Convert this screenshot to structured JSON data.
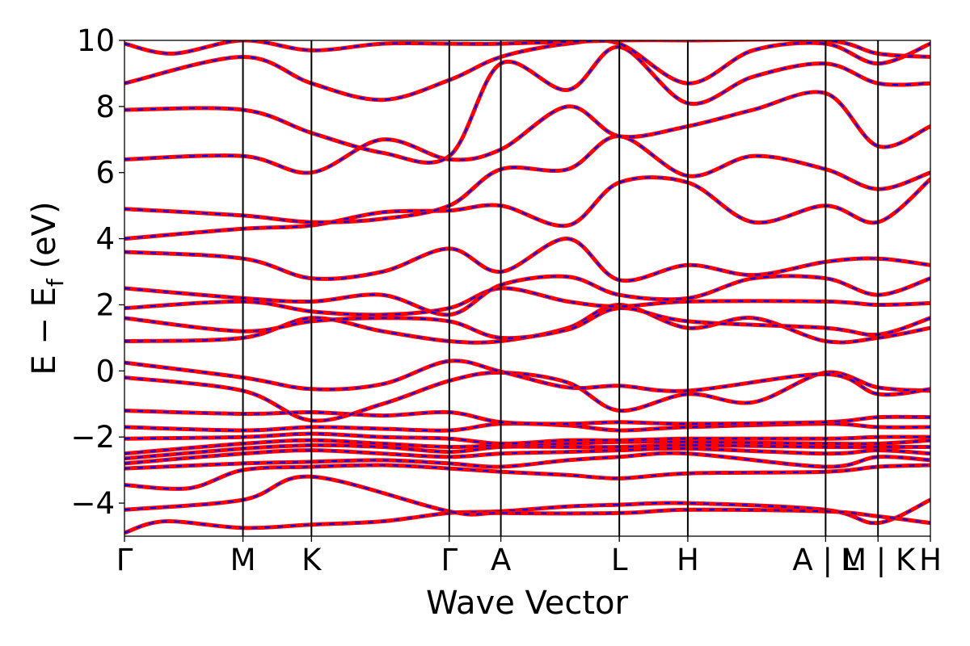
{
  "chart_data": {
    "type": "line",
    "xlabel": "Wave Vector",
    "ylabel_main": "E − E",
    "ylabel_sub": "f",
    "ylabel_unit": " (eV)",
    "ylim": [
      -5,
      10
    ],
    "yticks": [
      -4,
      -2,
      0,
      2,
      4,
      6,
      8,
      10
    ],
    "ytick_labels": [
      "−4",
      "−2",
      "0",
      "2",
      "4",
      "6",
      "8",
      "10"
    ],
    "xlim": [
      0,
      1
    ],
    "kpoints": [
      {
        "label": "Γ",
        "x": 0.0
      },
      {
        "label": "M",
        "x": 0.147
      },
      {
        "label": "K",
        "x": 0.232
      },
      {
        "label": "Γ",
        "x": 0.403
      },
      {
        "label": "A",
        "x": 0.467
      },
      {
        "label": "L",
        "x": 0.614
      },
      {
        "label": "H",
        "x": 0.699
      },
      {
        "label": "A | L",
        "x": 0.87
      },
      {
        "label": "M | K",
        "x": 0.935
      },
      {
        "label": "H",
        "x": 1.0
      }
    ],
    "series_colors": {
      "solid": "#ff0000",
      "dashed": "#0000ff"
    },
    "grid": false,
    "bands": [
      [
        [
          0,
          -4.9
        ],
        [
          0.05,
          -4.55
        ],
        [
          0.147,
          -4.75
        ],
        [
          0.232,
          -4.65
        ],
        [
          0.32,
          -4.55
        ],
        [
          0.403,
          -4.3
        ],
        [
          0.467,
          -4.25
        ],
        [
          0.55,
          -4.1
        ],
        [
          0.614,
          -4.05
        ],
        [
          0.699,
          -4.0
        ],
        [
          0.87,
          -4.2
        ],
        [
          0.935,
          -4.6
        ],
        [
          1,
          -3.9
        ]
      ],
      [
        [
          0,
          -4.2
        ],
        [
          0.147,
          -3.9
        ],
        [
          0.232,
          -3.2
        ],
        [
          0.403,
          -4.25
        ],
        [
          0.467,
          -4.3
        ],
        [
          0.614,
          -4.3
        ],
        [
          0.699,
          -4.2
        ],
        [
          0.87,
          -4.25
        ],
        [
          0.935,
          -4.4
        ],
        [
          1,
          -4.6
        ]
      ],
      [
        [
          0,
          -3.45
        ],
        [
          0.08,
          -3.55
        ],
        [
          0.147,
          -3.0
        ],
        [
          0.232,
          -2.9
        ],
        [
          0.32,
          -2.85
        ],
        [
          0.403,
          -2.95
        ],
        [
          0.467,
          -3.05
        ],
        [
          0.55,
          -3.15
        ],
        [
          0.614,
          -3.25
        ],
        [
          0.699,
          -3.1
        ],
        [
          0.87,
          -3.05
        ],
        [
          0.935,
          -2.9
        ],
        [
          1,
          -2.85
        ]
      ],
      [
        [
          0,
          -2.95
        ],
        [
          0.147,
          -2.8
        ],
        [
          0.232,
          -2.75
        ],
        [
          0.32,
          -2.7
        ],
        [
          0.403,
          -2.8
        ],
        [
          0.467,
          -2.9
        ],
        [
          0.55,
          -2.7
        ],
        [
          0.614,
          -2.6
        ],
        [
          0.699,
          -2.5
        ],
        [
          0.87,
          -2.9
        ],
        [
          0.935,
          -2.6
        ],
        [
          1,
          -2.7
        ]
      ],
      [
        [
          0,
          -2.8
        ],
        [
          0.147,
          -2.5
        ],
        [
          0.232,
          -2.4
        ],
        [
          0.32,
          -2.5
        ],
        [
          0.403,
          -2.6
        ],
        [
          0.467,
          -2.5
        ],
        [
          0.55,
          -2.45
        ],
        [
          0.614,
          -2.4
        ],
        [
          0.699,
          -2.35
        ],
        [
          0.87,
          -2.5
        ],
        [
          0.935,
          -2.4
        ],
        [
          1,
          -2.5
        ]
      ],
      [
        [
          0,
          -2.65
        ],
        [
          0.147,
          -2.35
        ],
        [
          0.232,
          -2.25
        ],
        [
          0.32,
          -2.3
        ],
        [
          0.403,
          -2.45
        ],
        [
          0.467,
          -2.3
        ],
        [
          0.55,
          -2.3
        ],
        [
          0.614,
          -2.3
        ],
        [
          0.699,
          -2.25
        ],
        [
          0.87,
          -2.3
        ],
        [
          0.935,
          -2.3
        ],
        [
          1,
          -2.3
        ]
      ],
      [
        [
          0,
          -2.5
        ],
        [
          0.147,
          -2.2
        ],
        [
          0.232,
          -2.1
        ],
        [
          0.32,
          -2.2
        ],
        [
          0.403,
          -2.3
        ],
        [
          0.467,
          -2.25
        ],
        [
          0.55,
          -2.2
        ],
        [
          0.614,
          -2.15
        ],
        [
          0.699,
          -2.15
        ],
        [
          0.87,
          -2.2
        ],
        [
          0.935,
          -2.2
        ],
        [
          1,
          -2.1
        ]
      ],
      [
        [
          0,
          -2.05
        ],
        [
          0.147,
          -2.0
        ],
        [
          0.232,
          -1.9
        ],
        [
          0.32,
          -2.0
        ],
        [
          0.403,
          -2.05
        ],
        [
          0.467,
          -2.2
        ],
        [
          0.55,
          -2.1
        ],
        [
          0.614,
          -2.1
        ],
        [
          0.699,
          -2.05
        ],
        [
          0.87,
          -2.05
        ],
        [
          0.935,
          -2.0
        ],
        [
          1,
          -2.0
        ]
      ],
      [
        [
          0,
          -1.7
        ],
        [
          0.147,
          -1.8
        ],
        [
          0.232,
          -1.7
        ],
        [
          0.32,
          -1.75
        ],
        [
          0.403,
          -1.8
        ],
        [
          0.467,
          -1.6
        ],
        [
          0.55,
          -1.65
        ],
        [
          0.614,
          -1.8
        ],
        [
          0.699,
          -1.7
        ],
        [
          0.87,
          -1.6
        ],
        [
          0.935,
          -1.7
        ],
        [
          1,
          -1.7
        ]
      ],
      [
        [
          0,
          -1.2
        ],
        [
          0.147,
          -1.3
        ],
        [
          0.232,
          -1.25
        ],
        [
          0.32,
          -1.35
        ],
        [
          0.403,
          -1.25
        ],
        [
          0.467,
          -1.55
        ],
        [
          0.55,
          -1.6
        ],
        [
          0.614,
          -1.55
        ],
        [
          0.699,
          -1.6
        ],
        [
          0.87,
          -1.55
        ],
        [
          0.935,
          -1.4
        ],
        [
          1,
          -1.4
        ]
      ],
      [
        [
          0,
          -0.2
        ],
        [
          0.147,
          -0.6
        ],
        [
          0.232,
          -1.5
        ],
        [
          0.32,
          -1.0
        ],
        [
          0.403,
          -0.3
        ],
        [
          0.467,
          -0.05
        ],
        [
          0.55,
          -0.35
        ],
        [
          0.614,
          -1.2
        ],
        [
          0.699,
          -0.7
        ],
        [
          0.78,
          -0.95
        ],
        [
          0.87,
          -0.05
        ],
        [
          0.935,
          -0.5
        ],
        [
          1,
          -0.6
        ]
      ],
      [
        [
          0,
          0.25
        ],
        [
          0.147,
          -0.2
        ],
        [
          0.232,
          -0.55
        ],
        [
          0.32,
          -0.4
        ],
        [
          0.403,
          0.3
        ],
        [
          0.467,
          -0.02
        ],
        [
          0.55,
          -0.5
        ],
        [
          0.614,
          -0.45
        ],
        [
          0.699,
          -0.6
        ],
        [
          0.87,
          -0.1
        ],
        [
          0.935,
          -0.7
        ],
        [
          1,
          -0.55
        ]
      ],
      [
        [
          0,
          0.9
        ],
        [
          0.147,
          1.0
        ],
        [
          0.232,
          1.6
        ],
        [
          0.32,
          1.2
        ],
        [
          0.403,
          0.9
        ],
        [
          0.467,
          0.9
        ],
        [
          0.55,
          1.3
        ],
        [
          0.614,
          2.0
        ],
        [
          0.699,
          1.3
        ],
        [
          0.78,
          1.6
        ],
        [
          0.87,
          0.9
        ],
        [
          0.935,
          1.0
        ],
        [
          1,
          1.3
        ]
      ],
      [
        [
          0,
          1.6
        ],
        [
          0.147,
          1.2
        ],
        [
          0.232,
          1.5
        ],
        [
          0.32,
          1.6
        ],
        [
          0.403,
          1.5
        ],
        [
          0.467,
          1.0
        ],
        [
          0.55,
          1.25
        ],
        [
          0.614,
          1.9
        ],
        [
          0.699,
          1.5
        ],
        [
          0.87,
          1.3
        ],
        [
          0.935,
          1.1
        ],
        [
          1,
          1.6
        ]
      ],
      [
        [
          0,
          1.9
        ],
        [
          0.147,
          2.1
        ],
        [
          0.232,
          1.8
        ],
        [
          0.32,
          1.7
        ],
        [
          0.403,
          1.9
        ],
        [
          0.467,
          2.5
        ],
        [
          0.55,
          2.1
        ],
        [
          0.614,
          1.95
        ],
        [
          0.699,
          2.1
        ],
        [
          0.87,
          2.1
        ],
        [
          0.935,
          2.0
        ],
        [
          1,
          2.05
        ]
      ],
      [
        [
          0,
          2.5
        ],
        [
          0.147,
          2.2
        ],
        [
          0.232,
          2.1
        ],
        [
          0.32,
          2.3
        ],
        [
          0.403,
          1.7
        ],
        [
          0.467,
          2.6
        ],
        [
          0.55,
          2.85
        ],
        [
          0.614,
          2.3
        ],
        [
          0.699,
          2.2
        ],
        [
          0.78,
          2.8
        ],
        [
          0.87,
          2.8
        ],
        [
          0.935,
          2.3
        ],
        [
          1,
          2.8
        ]
      ],
      [
        [
          0,
          3.6
        ],
        [
          0.147,
          3.4
        ],
        [
          0.232,
          2.8
        ],
        [
          0.32,
          3.0
        ],
        [
          0.403,
          3.7
        ],
        [
          0.467,
          3.0
        ],
        [
          0.55,
          4.0
        ],
        [
          0.614,
          2.75
        ],
        [
          0.699,
          3.2
        ],
        [
          0.78,
          2.9
        ],
        [
          0.87,
          3.3
        ],
        [
          0.935,
          3.4
        ],
        [
          1,
          3.2
        ]
      ],
      [
        [
          0,
          4.0
        ],
        [
          0.147,
          4.3
        ],
        [
          0.232,
          4.4
        ],
        [
          0.32,
          4.8
        ],
        [
          0.403,
          4.85
        ],
        [
          0.467,
          5.0
        ],
        [
          0.55,
          4.4
        ],
        [
          0.614,
          5.7
        ],
        [
          0.699,
          5.7
        ],
        [
          0.78,
          4.5
        ],
        [
          0.87,
          5.0
        ],
        [
          0.935,
          4.5
        ],
        [
          1,
          5.8
        ]
      ],
      [
        [
          0,
          4.9
        ],
        [
          0.147,
          4.7
        ],
        [
          0.232,
          4.5
        ],
        [
          0.32,
          4.6
        ],
        [
          0.403,
          5.0
        ],
        [
          0.467,
          6.1
        ],
        [
          0.55,
          6.1
        ],
        [
          0.614,
          7.1
        ],
        [
          0.699,
          5.9
        ],
        [
          0.78,
          6.5
        ],
        [
          0.87,
          6.1
        ],
        [
          0.935,
          5.5
        ],
        [
          1,
          6.0
        ]
      ],
      [
        [
          0,
          6.4
        ],
        [
          0.147,
          6.5
        ],
        [
          0.232,
          6.0
        ],
        [
          0.32,
          7.0
        ],
        [
          0.403,
          6.4
        ],
        [
          0.467,
          6.7
        ],
        [
          0.55,
          8.0
        ],
        [
          0.614,
          7.1
        ],
        [
          0.699,
          7.4
        ],
        [
          0.78,
          7.9
        ],
        [
          0.87,
          8.4
        ],
        [
          0.935,
          6.8
        ],
        [
          1,
          7.4
        ]
      ],
      [
        [
          0,
          7.9
        ],
        [
          0.147,
          7.9
        ],
        [
          0.232,
          7.2
        ],
        [
          0.32,
          6.6
        ],
        [
          0.403,
          6.5
        ],
        [
          0.467,
          9.3
        ],
        [
          0.55,
          8.5
        ],
        [
          0.614,
          9.8
        ],
        [
          0.699,
          8.1
        ],
        [
          0.78,
          8.9
        ],
        [
          0.87,
          9.3
        ],
        [
          0.935,
          8.7
        ],
        [
          1,
          8.7
        ]
      ],
      [
        [
          0,
          8.7
        ],
        [
          0.147,
          9.5
        ],
        [
          0.232,
          8.7
        ],
        [
          0.32,
          8.2
        ],
        [
          0.403,
          8.8
        ],
        [
          0.467,
          9.5
        ],
        [
          0.55,
          9.9
        ],
        [
          0.614,
          9.9
        ],
        [
          0.699,
          8.7
        ],
        [
          0.78,
          9.7
        ],
        [
          0.87,
          9.9
        ],
        [
          0.935,
          9.3
        ],
        [
          1,
          9.9
        ]
      ],
      [
        [
          0,
          9.9
        ],
        [
          0.06,
          9.6
        ],
        [
          0.147,
          10.0
        ],
        [
          0.232,
          9.7
        ],
        [
          0.32,
          9.9
        ],
        [
          0.403,
          9.9
        ],
        [
          0.467,
          9.9
        ],
        [
          0.614,
          10.0
        ],
        [
          0.699,
          10.0
        ],
        [
          0.87,
          10.0
        ],
        [
          0.935,
          9.6
        ],
        [
          1,
          9.5
        ]
      ]
    ]
  }
}
